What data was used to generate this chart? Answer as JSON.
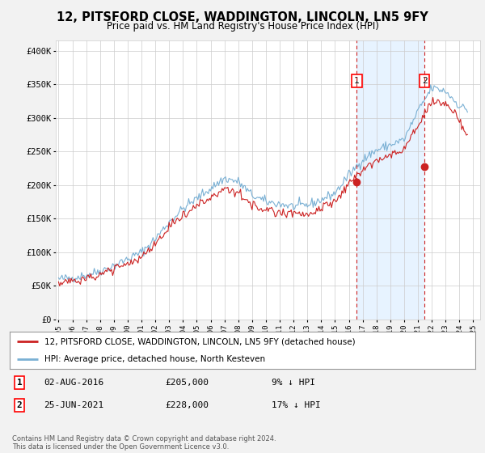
{
  "title": "12, PITSFORD CLOSE, WADDINGTON, LINCOLN, LN5 9FY",
  "subtitle": "Price paid vs. HM Land Registry's House Price Index (HPI)",
  "ylabel_ticks": [
    "£0",
    "£50K",
    "£100K",
    "£150K",
    "£200K",
    "£250K",
    "£300K",
    "£350K",
    "£400K"
  ],
  "ytick_values": [
    0,
    50000,
    100000,
    150000,
    200000,
    250000,
    300000,
    350000,
    400000
  ],
  "ylim": [
    0,
    415000
  ],
  "xlim_start": 1994.8,
  "xlim_end": 2025.5,
  "background_color": "#f2f2f2",
  "plot_bg_color": "#ffffff",
  "hpi_color": "#7ab0d4",
  "hpi_fill_color": "#ddeeff",
  "price_color": "#cc2222",
  "vline_color": "#cc2222",
  "sale1_x": 2016.58,
  "sale1_y": 205000,
  "sale1_label": "1",
  "sale1_date": "02-AUG-2016",
  "sale1_price": "£205,000",
  "sale1_hpi": "9% ↓ HPI",
  "sale2_x": 2021.48,
  "sale2_y": 228000,
  "sale2_label": "2",
  "sale2_date": "25-JUN-2021",
  "sale2_price": "£228,000",
  "sale2_hpi": "17% ↓ HPI",
  "legend_line1": "12, PITSFORD CLOSE, WADDINGTON, LINCOLN, LN5 9FY (detached house)",
  "legend_line2": "HPI: Average price, detached house, North Kesteven",
  "footnote": "Contains HM Land Registry data © Crown copyright and database right 2024.\nThis data is licensed under the Open Government Licence v3.0."
}
